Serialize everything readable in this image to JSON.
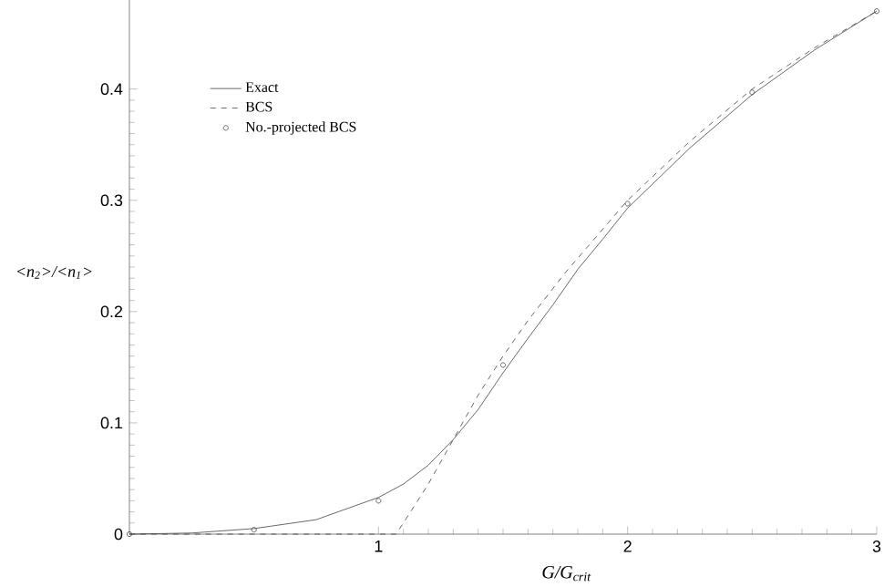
{
  "chart_data": {
    "type": "line",
    "xlabel": "G/G$_{crit}$",
    "ylabel": "<n$_{2}$>/<n$_{1}$>",
    "xlim": [
      0,
      3
    ],
    "ylim": [
      0,
      0.48
    ],
    "xticks": [
      1,
      2,
      3
    ],
    "yticks": [
      0,
      0.1,
      0.2,
      0.3,
      0.4
    ],
    "legend": "top left",
    "grid": false,
    "series": [
      {
        "name": "Exact",
        "color": "#444444",
        "line_style": "solid",
        "marker": "none",
        "x": [
          0,
          0.25,
          0.5,
          0.75,
          1,
          1.1,
          1.2,
          1.3,
          1.4,
          1.5,
          1.6,
          1.7,
          1.8,
          1.9,
          2,
          2.25,
          2.5,
          2.75,
          3
        ],
        "values": [
          0,
          0.001,
          0.005,
          0.013,
          0.033,
          0.045,
          0.062,
          0.085,
          0.112,
          0.145,
          0.176,
          0.206,
          0.238,
          0.265,
          0.293,
          0.347,
          0.395,
          0.435,
          0.47
        ]
      },
      {
        "name": "BCS",
        "color": "#444444",
        "line_style": "dashed",
        "marker": "none",
        "x": [
          0,
          1.07,
          1.1,
          1.2,
          1.3,
          1.4,
          1.5,
          1.6,
          1.75,
          2,
          2.25,
          2.5,
          2.75,
          3
        ],
        "values": [
          0,
          0,
          0.01,
          0.045,
          0.085,
          0.125,
          0.16,
          0.192,
          0.235,
          0.3,
          0.353,
          0.4,
          0.437,
          0.47
        ]
      },
      {
        "name": "No.-projected BCS",
        "type": "scatter",
        "color": "#444444",
        "marker": "circle",
        "x": [
          0,
          0.5,
          1,
          1.5,
          2,
          2.5,
          3
        ],
        "values": [
          0,
          0.004,
          0.03,
          0.152,
          0.297,
          0.397,
          0.47
        ]
      }
    ]
  }
}
